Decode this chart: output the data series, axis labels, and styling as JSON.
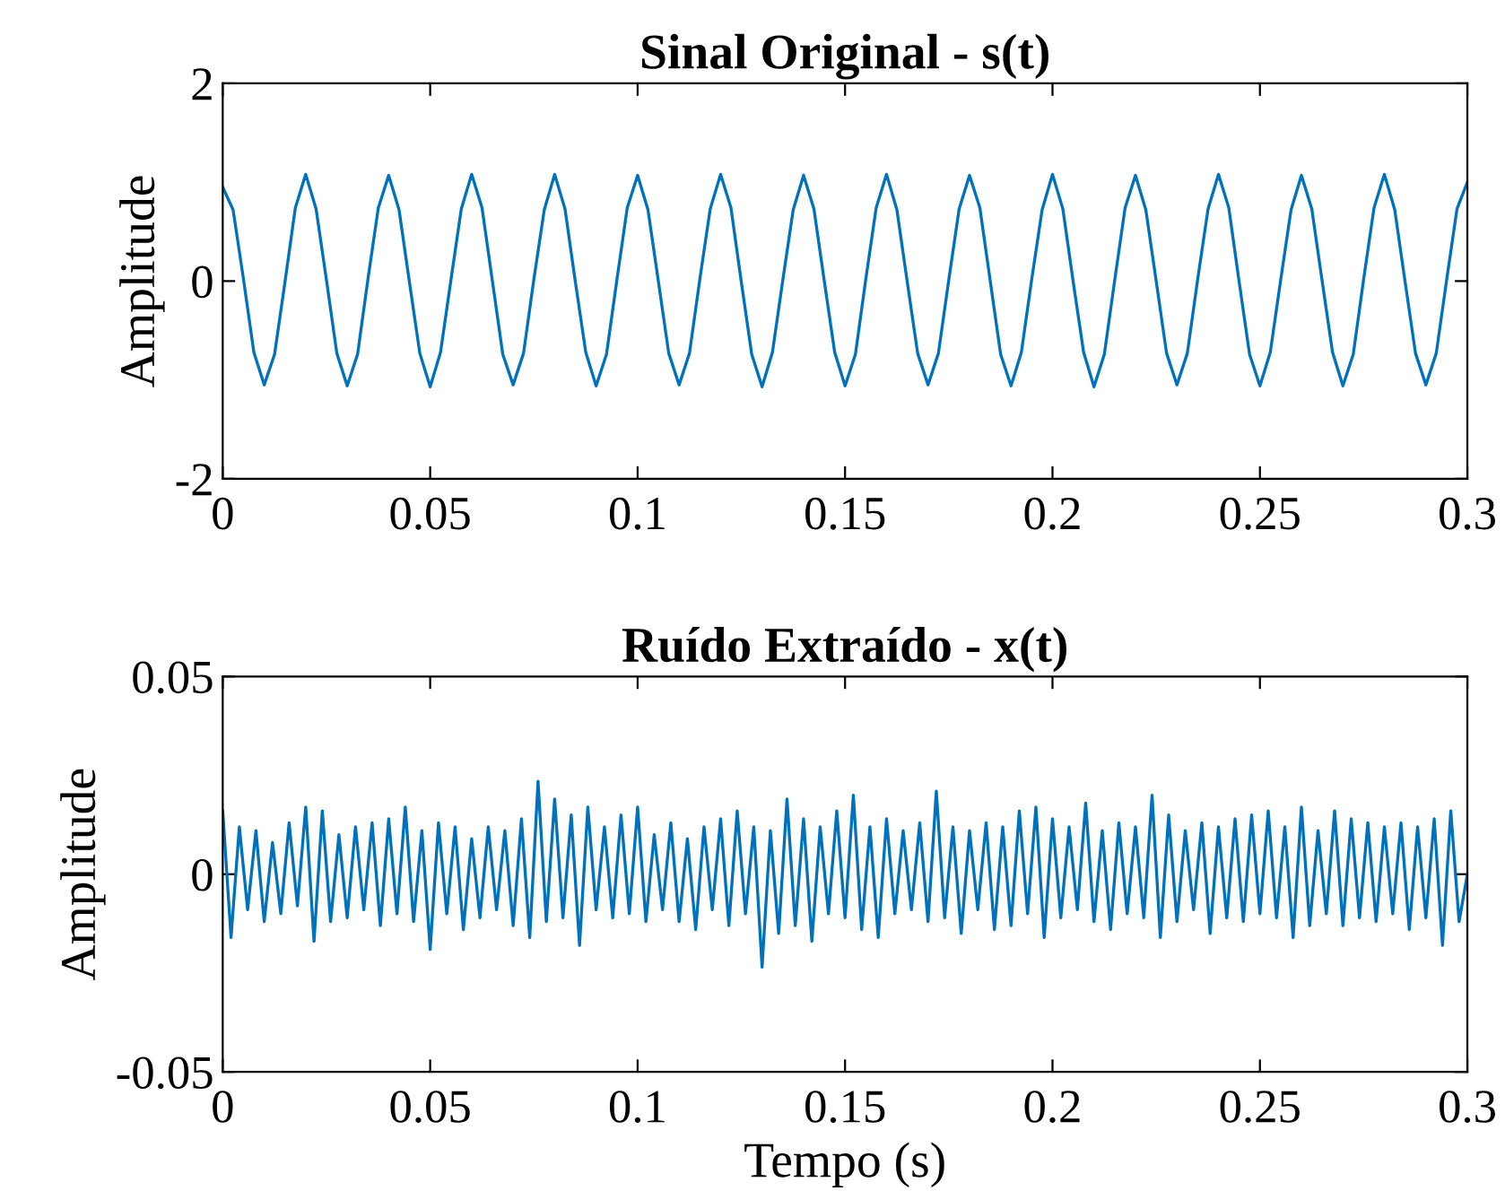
{
  "chart_data": [
    {
      "type": "line",
      "title": "Sinal Original - s(t)",
      "ylabel": "Amplitude",
      "xlim": [
        0,
        0.3
      ],
      "ylim": [
        -2,
        2
      ],
      "xticks": [
        0,
        0.05,
        0.1,
        0.15,
        0.2,
        0.25,
        0.3
      ],
      "yticks": [
        -2,
        0,
        2
      ],
      "grid": false,
      "legend": false,
      "series": [
        {
          "color": "#0072bd",
          "x": [
            0,
            0.0025,
            0.005,
            0.0075,
            0.01,
            0.0125,
            0.015,
            0.0175,
            0.02,
            0.0225,
            0.025,
            0.0275,
            0.03,
            0.0325,
            0.035,
            0.0375,
            0.04,
            0.0425,
            0.045,
            0.0475,
            0.05,
            0.0525,
            0.055,
            0.0575,
            0.06,
            0.0625,
            0.065,
            0.0675,
            0.07,
            0.0725,
            0.075,
            0.0775,
            0.08,
            0.0825,
            0.085,
            0.0875,
            0.09,
            0.0925,
            0.095,
            0.0975,
            0.1,
            0.1025,
            0.105,
            0.1075,
            0.11,
            0.1125,
            0.115,
            0.1175,
            0.12,
            0.1225,
            0.125,
            0.1275,
            0.13,
            0.1325,
            0.135,
            0.1375,
            0.14,
            0.1425,
            0.145,
            0.1475,
            0.15,
            0.1525,
            0.155,
            0.1575,
            0.16,
            0.1625,
            0.165,
            0.1675,
            0.17,
            0.1725,
            0.175,
            0.1775,
            0.18,
            0.1825,
            0.185,
            0.1875,
            0.19,
            0.1925,
            0.195,
            0.1975,
            0.2,
            0.2025,
            0.205,
            0.2075,
            0.21,
            0.2125,
            0.215,
            0.2175,
            0.22,
            0.2225,
            0.225,
            0.2275,
            0.23,
            0.2325,
            0.235,
            0.2375,
            0.24,
            0.2425,
            0.245,
            0.2475,
            0.25,
            0.2525,
            0.255,
            0.2575,
            0.26,
            0.2625,
            0.265,
            0.2675,
            0.27,
            0.2725,
            0.275,
            0.2775,
            0.28,
            0.2825,
            0.285,
            0.2875,
            0.29,
            0.2925,
            0.295,
            0.2975,
            0.3
          ],
          "values": [
            0.95,
            0.72,
            0.02,
            -0.72,
            -1.05,
            -0.74,
            -0.01,
            0.74,
            1.08,
            0.73,
            0.01,
            -0.73,
            -1.06,
            -0.74,
            0.02,
            0.74,
            1.07,
            0.72,
            -0.01,
            -0.73,
            -1.07,
            -0.72,
            0.01,
            0.73,
            1.08,
            0.74,
            0.0,
            -0.74,
            -1.05,
            -0.73,
            0.02,
            0.72,
            1.08,
            0.73,
            -0.01,
            -0.72,
            -1.06,
            -0.74,
            0.01,
            0.74,
            1.07,
            0.72,
            0.0,
            -0.73,
            -1.05,
            -0.73,
            0.02,
            0.73,
            1.08,
            0.74,
            -0.01,
            -0.74,
            -1.07,
            -0.72,
            0.01,
            0.72,
            1.07,
            0.73,
            0.0,
            -0.72,
            -1.06,
            -0.74,
            0.02,
            0.74,
            1.08,
            0.72,
            -0.01,
            -0.73,
            -1.05,
            -0.73,
            0.01,
            0.73,
            1.07,
            0.74,
            0.0,
            -0.74,
            -1.06,
            -0.72,
            0.02,
            0.72,
            1.08,
            0.73,
            -0.01,
            -0.72,
            -1.07,
            -0.74,
            0.01,
            0.74,
            1.07,
            0.72,
            0.0,
            -0.73,
            -1.05,
            -0.73,
            0.02,
            0.73,
            1.08,
            0.74,
            -0.01,
            -0.74,
            -1.06,
            -0.72,
            0.01,
            0.72,
            1.07,
            0.73,
            0.0,
            -0.72,
            -1.06,
            -0.74,
            0.02,
            0.74,
            1.08,
            0.72,
            -0.01,
            -0.73,
            -1.05,
            -0.73,
            0.01,
            0.73,
            1.0
          ]
        }
      ]
    },
    {
      "type": "line",
      "title": "Ruído Extraído - x(t)",
      "xlabel": "Tempo (s)",
      "ylabel": "Amplitude",
      "xlim": [
        0,
        0.3
      ],
      "ylim": [
        -0.05,
        0.05
      ],
      "xticks": [
        0,
        0.05,
        0.1,
        0.15,
        0.2,
        0.25,
        0.3
      ],
      "yticks": [
        -0.05,
        0,
        0.05
      ],
      "grid": false,
      "legend": false,
      "series": [
        {
          "color": "#0072bd",
          "x": [
            0,
            0.002,
            0.004,
            0.006,
            0.008,
            0.01,
            0.012,
            0.014,
            0.016,
            0.018,
            0.02,
            0.022,
            0.024,
            0.026,
            0.028,
            0.03,
            0.032,
            0.034,
            0.036,
            0.038,
            0.04,
            0.042,
            0.044,
            0.046,
            0.048,
            0.05,
            0.052,
            0.054,
            0.056,
            0.058,
            0.06,
            0.062,
            0.064,
            0.066,
            0.068,
            0.07,
            0.072,
            0.074,
            0.076,
            0.078,
            0.08,
            0.082,
            0.084,
            0.086,
            0.088,
            0.09,
            0.092,
            0.094,
            0.096,
            0.098,
            0.1,
            0.102,
            0.104,
            0.106,
            0.108,
            0.11,
            0.112,
            0.114,
            0.116,
            0.118,
            0.12,
            0.122,
            0.124,
            0.126,
            0.128,
            0.13,
            0.132,
            0.134,
            0.136,
            0.138,
            0.14,
            0.142,
            0.144,
            0.146,
            0.148,
            0.15,
            0.152,
            0.154,
            0.156,
            0.158,
            0.16,
            0.162,
            0.164,
            0.166,
            0.168,
            0.17,
            0.172,
            0.174,
            0.176,
            0.178,
            0.18,
            0.182,
            0.184,
            0.186,
            0.188,
            0.19,
            0.192,
            0.194,
            0.196,
            0.198,
            0.2,
            0.202,
            0.204,
            0.206,
            0.208,
            0.21,
            0.212,
            0.214,
            0.216,
            0.218,
            0.22,
            0.222,
            0.224,
            0.226,
            0.228,
            0.23,
            0.232,
            0.234,
            0.236,
            0.238,
            0.24,
            0.242,
            0.244,
            0.246,
            0.248,
            0.25,
            0.252,
            0.254,
            0.256,
            0.258,
            0.26,
            0.262,
            0.264,
            0.266,
            0.268,
            0.27,
            0.272,
            0.274,
            0.276,
            0.278,
            0.28,
            0.282,
            0.284,
            0.286,
            0.288,
            0.29,
            0.292,
            0.294,
            0.296,
            0.298,
            0.3
          ],
          "values": [
            0.016,
            -0.016,
            0.012,
            -0.009,
            0.011,
            -0.012,
            0.008,
            -0.01,
            0.013,
            -0.008,
            0.017,
            -0.017,
            0.016,
            -0.012,
            0.01,
            -0.011,
            0.012,
            -0.009,
            0.013,
            -0.013,
            0.014,
            -0.01,
            0.017,
            -0.012,
            0.011,
            -0.019,
            0.013,
            -0.01,
            0.012,
            -0.014,
            0.009,
            -0.011,
            0.012,
            -0.009,
            0.011,
            -0.013,
            0.014,
            -0.016,
            0.0235,
            -0.012,
            0.019,
            -0.011,
            0.015,
            -0.018,
            0.017,
            -0.009,
            0.012,
            -0.011,
            0.015,
            -0.01,
            0.017,
            -0.012,
            0.01,
            -0.009,
            0.013,
            -0.012,
            0.009,
            -0.014,
            0.012,
            -0.009,
            0.014,
            -0.013,
            0.016,
            -0.01,
            0.012,
            -0.0235,
            0.011,
            -0.015,
            0.019,
            -0.013,
            0.014,
            -0.017,
            0.012,
            -0.01,
            0.016,
            -0.011,
            0.02,
            -0.014,
            0.012,
            -0.016,
            0.014,
            -0.01,
            0.011,
            -0.009,
            0.013,
            -0.012,
            0.021,
            -0.011,
            0.012,
            -0.015,
            0.011,
            -0.009,
            0.013,
            -0.014,
            0.012,
            -0.013,
            0.016,
            -0.01,
            0.017,
            -0.016,
            0.014,
            -0.011,
            0.012,
            -0.009,
            0.018,
            -0.012,
            0.011,
            -0.014,
            0.013,
            -0.01,
            0.012,
            -0.011,
            0.02,
            -0.016,
            0.015,
            -0.012,
            0.011,
            -0.009,
            0.013,
            -0.015,
            0.012,
            -0.011,
            0.014,
            -0.012,
            0.015,
            -0.01,
            0.016,
            -0.011,
            0.012,
            -0.016,
            0.017,
            -0.013,
            0.011,
            -0.01,
            0.016,
            -0.013,
            0.014,
            -0.011,
            0.013,
            -0.012,
            0.012,
            -0.01,
            0.013,
            -0.014,
            0.012,
            -0.011,
            0.014,
            -0.018,
            0.016,
            -0.012,
            0.0
          ]
        }
      ]
    }
  ]
}
